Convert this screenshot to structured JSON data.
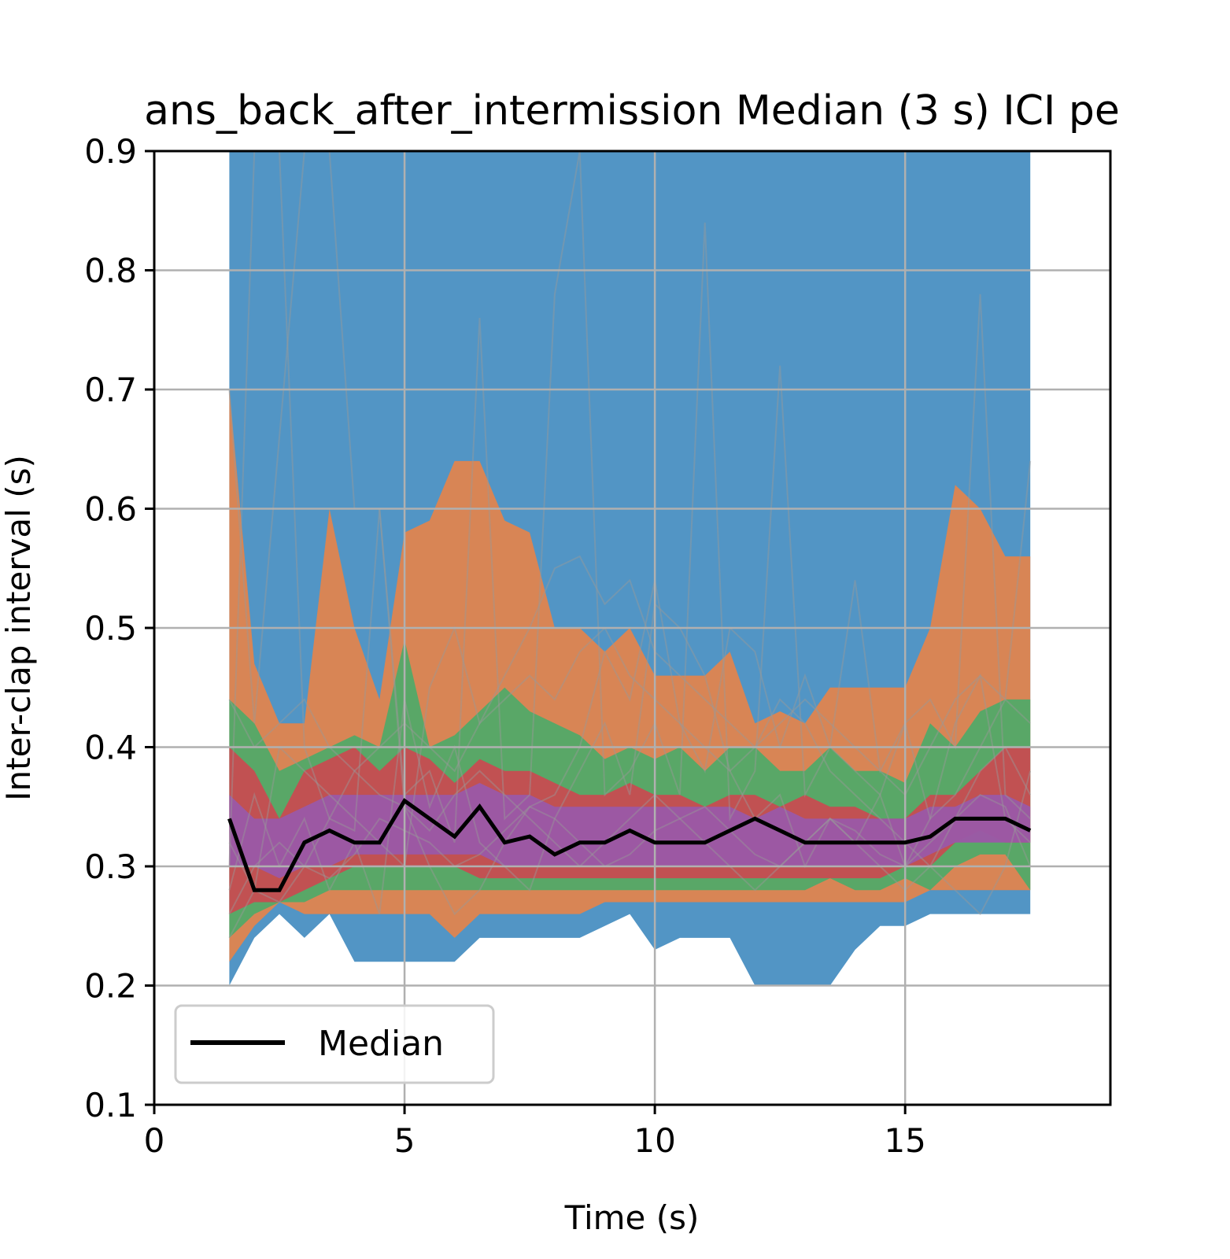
{
  "chart_data": {
    "type": "area",
    "title": "ans_back_after_intermission Median (3 s) ICI pe",
    "xlabel": "Time (s)",
    "ylabel": "Inter-clap interval (s)",
    "xlim": [
      0,
      19.1
    ],
    "ylim": [
      0.1,
      0.9
    ],
    "xticks": [
      0,
      5,
      10,
      15
    ],
    "yticks": [
      0.1,
      0.2,
      0.3,
      0.4,
      0.5,
      0.6,
      0.7,
      0.8,
      0.9
    ],
    "grid": true,
    "legend": {
      "placement": "lower-left",
      "entries": [
        "Median"
      ]
    },
    "x": [
      1.5,
      2,
      2.5,
      3,
      3.5,
      4,
      4.5,
      5,
      5.5,
      6,
      6.5,
      7,
      7.5,
      8,
      8.5,
      9,
      9.5,
      10,
      10.5,
      11,
      11.5,
      12,
      12.5,
      13,
      13.5,
      14,
      14.5,
      15,
      15.5,
      16,
      16.5,
      17,
      17.5
    ],
    "bands": [
      {
        "color": "#4c92c3",
        "upper": [
          0.9,
          0.9,
          0.9,
          0.9,
          0.9,
          0.9,
          0.9,
          0.9,
          0.9,
          0.9,
          0.9,
          0.9,
          0.9,
          0.9,
          0.9,
          0.9,
          0.9,
          0.9,
          0.9,
          0.9,
          0.9,
          0.9,
          0.9,
          0.9,
          0.9,
          0.9,
          0.9,
          0.9,
          0.9,
          0.9,
          0.9,
          0.9,
          0.9
        ],
        "lower": [
          0.2,
          0.24,
          0.26,
          0.24,
          0.26,
          0.22,
          0.22,
          0.22,
          0.22,
          0.22,
          0.24,
          0.24,
          0.24,
          0.24,
          0.24,
          0.25,
          0.26,
          0.23,
          0.24,
          0.24,
          0.24,
          0.2,
          0.2,
          0.2,
          0.2,
          0.23,
          0.25,
          0.25,
          0.26,
          0.26,
          0.26,
          0.26,
          0.26
        ]
      },
      {
        "color": "#dd8452",
        "upper": [
          0.7,
          0.47,
          0.42,
          0.42,
          0.6,
          0.5,
          0.44,
          0.58,
          0.59,
          0.64,
          0.64,
          0.59,
          0.58,
          0.5,
          0.5,
          0.48,
          0.5,
          0.46,
          0.46,
          0.46,
          0.48,
          0.42,
          0.43,
          0.42,
          0.45,
          0.45,
          0.45,
          0.45,
          0.5,
          0.62,
          0.6,
          0.56,
          0.56
        ],
        "lower": [
          0.22,
          0.25,
          0.27,
          0.26,
          0.26,
          0.26,
          0.26,
          0.26,
          0.26,
          0.24,
          0.26,
          0.26,
          0.26,
          0.26,
          0.26,
          0.27,
          0.27,
          0.27,
          0.27,
          0.27,
          0.27,
          0.27,
          0.27,
          0.27,
          0.27,
          0.27,
          0.27,
          0.27,
          0.28,
          0.28,
          0.28,
          0.28,
          0.28
        ]
      },
      {
        "color": "#55a868",
        "upper": [
          0.44,
          0.42,
          0.38,
          0.39,
          0.4,
          0.41,
          0.4,
          0.49,
          0.4,
          0.41,
          0.43,
          0.45,
          0.43,
          0.42,
          0.41,
          0.39,
          0.4,
          0.39,
          0.4,
          0.38,
          0.4,
          0.4,
          0.38,
          0.38,
          0.4,
          0.38,
          0.38,
          0.37,
          0.42,
          0.4,
          0.43,
          0.44,
          0.44
        ],
        "lower": [
          0.24,
          0.26,
          0.27,
          0.27,
          0.28,
          0.28,
          0.28,
          0.28,
          0.28,
          0.28,
          0.28,
          0.28,
          0.28,
          0.28,
          0.28,
          0.28,
          0.28,
          0.28,
          0.28,
          0.28,
          0.28,
          0.28,
          0.28,
          0.28,
          0.29,
          0.28,
          0.28,
          0.29,
          0.28,
          0.3,
          0.31,
          0.31,
          0.28
        ]
      },
      {
        "color": "#c44e52",
        "upper": [
          0.4,
          0.38,
          0.34,
          0.38,
          0.39,
          0.4,
          0.38,
          0.4,
          0.39,
          0.37,
          0.39,
          0.38,
          0.38,
          0.37,
          0.36,
          0.36,
          0.37,
          0.36,
          0.36,
          0.35,
          0.36,
          0.36,
          0.35,
          0.36,
          0.35,
          0.35,
          0.34,
          0.34,
          0.36,
          0.36,
          0.38,
          0.4,
          0.4
        ],
        "lower": [
          0.26,
          0.27,
          0.27,
          0.28,
          0.29,
          0.3,
          0.3,
          0.3,
          0.3,
          0.3,
          0.29,
          0.29,
          0.29,
          0.29,
          0.29,
          0.29,
          0.29,
          0.29,
          0.29,
          0.29,
          0.29,
          0.29,
          0.29,
          0.29,
          0.29,
          0.29,
          0.29,
          0.3,
          0.3,
          0.32,
          0.33,
          0.32,
          0.32
        ]
      },
      {
        "color": "#9b59a6",
        "upper": [
          0.36,
          0.34,
          0.34,
          0.35,
          0.36,
          0.36,
          0.36,
          0.36,
          0.36,
          0.36,
          0.37,
          0.36,
          0.36,
          0.35,
          0.35,
          0.35,
          0.35,
          0.35,
          0.35,
          0.35,
          0.35,
          0.34,
          0.35,
          0.34,
          0.34,
          0.34,
          0.34,
          0.34,
          0.35,
          0.35,
          0.36,
          0.36,
          0.35
        ],
        "lower": [
          0.3,
          0.3,
          0.29,
          0.3,
          0.3,
          0.31,
          0.31,
          0.31,
          0.31,
          0.31,
          0.31,
          0.3,
          0.3,
          0.3,
          0.3,
          0.3,
          0.3,
          0.3,
          0.3,
          0.3,
          0.3,
          0.3,
          0.3,
          0.3,
          0.3,
          0.3,
          0.3,
          0.3,
          0.31,
          0.32,
          0.32,
          0.32,
          0.32
        ]
      }
    ],
    "traces": [
      {
        "color": "#999999",
        "values": [
          0.7,
          0.42,
          0.66,
          0.9,
          0.9,
          0.6,
          0.6,
          0.35,
          0.3,
          0.26,
          0.28,
          0.32,
          0.35,
          0.36,
          0.4,
          0.48,
          0.44,
          0.54,
          0.42,
          0.38,
          0.5,
          0.48,
          0.4,
          0.46,
          0.4,
          0.54,
          0.38,
          0.42,
          0.34,
          0.36,
          0.4,
          0.44,
          0.64
        ]
      },
      {
        "color": "#999999",
        "values": [
          0.28,
          0.36,
          0.3,
          0.34,
          0.28,
          0.32,
          0.26,
          0.44,
          0.35,
          0.4,
          0.32,
          0.3,
          0.28,
          0.34,
          0.38,
          0.42,
          0.36,
          0.52,
          0.5,
          0.46,
          0.38,
          0.34,
          0.36,
          0.3,
          0.34,
          0.32,
          0.36,
          0.3,
          0.34,
          0.42,
          0.46,
          0.34,
          0.32
        ]
      },
      {
        "color": "#999999",
        "values": [
          0.32,
          0.28,
          0.4,
          0.38,
          0.36,
          0.34,
          0.32,
          0.3,
          0.45,
          0.5,
          0.42,
          0.46,
          0.5,
          0.55,
          0.56,
          0.52,
          0.54,
          0.48,
          0.46,
          0.44,
          0.42,
          0.4,
          0.44,
          0.42,
          0.38,
          0.36,
          0.34,
          0.32,
          0.3,
          0.28,
          0.26,
          0.3,
          0.38
        ]
      },
      {
        "color": "#999999",
        "values": [
          0.26,
          0.3,
          0.32,
          0.3,
          0.29,
          0.31,
          0.34,
          0.33,
          0.32,
          0.3,
          0.31,
          0.33,
          0.35,
          0.34,
          0.32,
          0.3,
          0.31,
          0.33,
          0.34,
          0.35,
          0.33,
          0.31,
          0.3,
          0.32,
          0.34,
          0.33,
          0.31,
          0.3,
          0.32,
          0.34,
          0.36,
          0.35,
          0.3
        ]
      },
      {
        "color": "#999999",
        "values": [
          0.24,
          0.28,
          0.27,
          0.3,
          0.34,
          0.38,
          0.36,
          0.35,
          0.33,
          0.36,
          0.38,
          0.36,
          0.34,
          0.32,
          0.3,
          0.32,
          0.34,
          0.36,
          0.34,
          0.32,
          0.3,
          0.28,
          0.3,
          0.32,
          0.34,
          0.32,
          0.3,
          0.28,
          0.3,
          0.34,
          0.38,
          0.4,
          0.36
        ]
      },
      {
        "color": "#999999",
        "values": [
          0.44,
          0.4,
          0.42,
          0.44,
          0.4,
          0.38,
          0.4,
          0.42,
          0.4,
          0.38,
          0.42,
          0.44,
          0.46,
          0.44,
          0.48,
          0.5,
          0.46,
          0.44,
          0.42,
          0.4,
          0.38,
          0.4,
          0.42,
          0.44,
          0.42,
          0.4,
          0.38,
          0.36,
          0.4,
          0.44,
          0.46,
          0.44,
          0.42
        ]
      },
      {
        "color": "#999999",
        "values": [
          0.3,
          0.9,
          0.9,
          0.4,
          0.34,
          0.33,
          0.6,
          0.36,
          0.38,
          0.32,
          0.76,
          0.34,
          0.36,
          0.78,
          0.9,
          0.36,
          0.38,
          0.42,
          0.36,
          0.84,
          0.34,
          0.38,
          0.72,
          0.36,
          0.4,
          0.38,
          0.36,
          0.42,
          0.44,
          0.4,
          0.78,
          0.36,
          0.34
        ]
      }
    ],
    "series": [
      {
        "name": "Median",
        "color": "#000000",
        "values": [
          0.34,
          0.28,
          0.28,
          0.32,
          0.33,
          0.32,
          0.32,
          0.355,
          0.34,
          0.325,
          0.35,
          0.32,
          0.325,
          0.31,
          0.32,
          0.32,
          0.33,
          0.32,
          0.32,
          0.32,
          0.33,
          0.34,
          0.33,
          0.32,
          0.32,
          0.32,
          0.32,
          0.32,
          0.325,
          0.34,
          0.34,
          0.34,
          0.33
        ]
      }
    ]
  }
}
